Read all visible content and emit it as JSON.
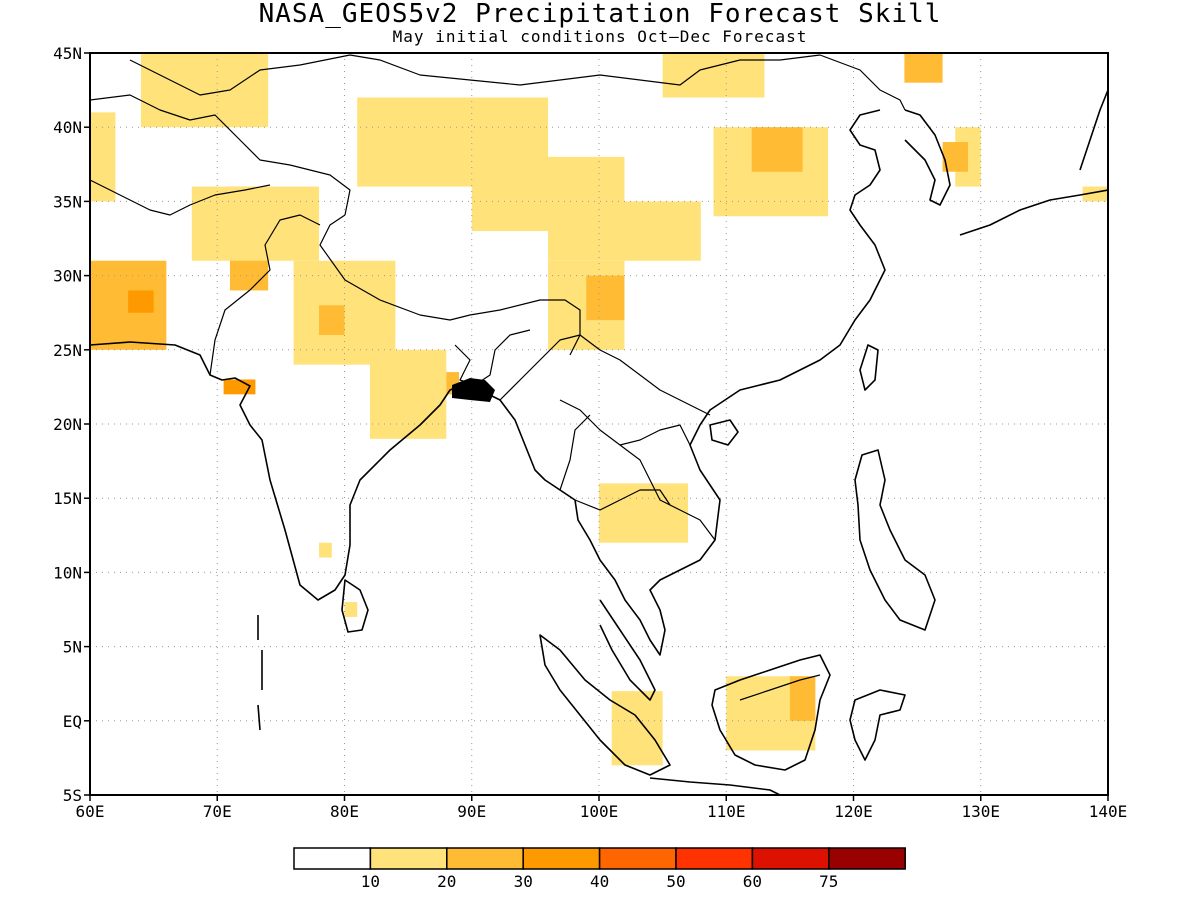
{
  "title": "NASA_GEOS5v2 Precipitation Forecast Skill",
  "subtitle": "May initial conditions  Oct–Dec Forecast",
  "map": {
    "lon_range": [
      60,
      140
    ],
    "lat_range": [
      -5,
      45
    ],
    "lon_ticks": [
      {
        "value": 60,
        "label": "60E"
      },
      {
        "value": 70,
        "label": "70E"
      },
      {
        "value": 80,
        "label": "80E"
      },
      {
        "value": 90,
        "label": "90E"
      },
      {
        "value": 100,
        "label": "100E"
      },
      {
        "value": 110,
        "label": "110E"
      },
      {
        "value": 120,
        "label": "120E"
      },
      {
        "value": 130,
        "label": "130E"
      },
      {
        "value": 140,
        "label": "140E"
      }
    ],
    "lat_ticks": [
      {
        "value": 45,
        "label": "45N"
      },
      {
        "value": 40,
        "label": "40N"
      },
      {
        "value": 35,
        "label": "35N"
      },
      {
        "value": 30,
        "label": "30N"
      },
      {
        "value": 25,
        "label": "25N"
      },
      {
        "value": 20,
        "label": "20N"
      },
      {
        "value": 15,
        "label": "15N"
      },
      {
        "value": 10,
        "label": "10N"
      },
      {
        "value": 5,
        "label": "5N"
      },
      {
        "value": 0,
        "label": "EQ"
      },
      {
        "value": -5,
        "label": "5S"
      }
    ],
    "grid": true
  },
  "legend": {
    "colors": [
      "#ffffff",
      "#ffe27a",
      "#ffbb33",
      "#ff9900",
      "#ff6600",
      "#ff3300",
      "#dd1100",
      "#990000"
    ],
    "labels": [
      "10",
      "20",
      "30",
      "40",
      "50",
      "60",
      "75"
    ]
  },
  "chart_data": {
    "type": "heatmap",
    "title": "NASA_GEOS5v2 Precipitation Forecast Skill",
    "subtitle": "May initial conditions  Oct–Dec Forecast",
    "xlim": [
      60,
      140
    ],
    "ylim": [
      -5,
      45
    ],
    "legend_thresholds": [
      10,
      20,
      30,
      40,
      50,
      60,
      75
    ],
    "regions": [
      {
        "lon": [
          60,
          62
        ],
        "lat": [
          35,
          41
        ],
        "level": 10
      },
      {
        "lon": [
          64,
          74
        ],
        "lat": [
          40,
          45
        ],
        "level": 10
      },
      {
        "lon": [
          60,
          66
        ],
        "lat": [
          25,
          31
        ],
        "level": 20
      },
      {
        "lon": [
          63,
          65
        ],
        "lat": [
          27.5,
          29
        ],
        "level": 30
      },
      {
        "lon": [
          71,
          74
        ],
        "lat": [
          29,
          36
        ],
        "level": 20
      },
      {
        "lon": [
          68,
          78
        ],
        "lat": [
          31,
          36
        ],
        "level": 10
      },
      {
        "lon": [
          76,
          84
        ],
        "lat": [
          24,
          31
        ],
        "level": 10
      },
      {
        "lon": [
          78,
          80
        ],
        "lat": [
          26,
          28
        ],
        "level": 20
      },
      {
        "lon": [
          70.5,
          73
        ],
        "lat": [
          22,
          23
        ],
        "level": 30
      },
      {
        "lon": [
          82,
          88
        ],
        "lat": [
          19,
          25
        ],
        "level": 10
      },
      {
        "lon": [
          88,
          89
        ],
        "lat": [
          22,
          23.5
        ],
        "level": 20
      },
      {
        "lon": [
          81,
          96
        ],
        "lat": [
          36,
          42
        ],
        "level": 10
      },
      {
        "lon": [
          90,
          102
        ],
        "lat": [
          33,
          38
        ],
        "level": 10
      },
      {
        "lon": [
          96,
          102
        ],
        "lat": [
          25,
          31
        ],
        "level": 10
      },
      {
        "lon": [
          99,
          102
        ],
        "lat": [
          27,
          30
        ],
        "level": 20
      },
      {
        "lon": [
          96,
          108
        ],
        "lat": [
          31,
          35
        ],
        "level": 10
      },
      {
        "lon": [
          109,
          118
        ],
        "lat": [
          34,
          40
        ],
        "level": 10
      },
      {
        "lon": [
          112,
          116
        ],
        "lat": [
          37,
          40
        ],
        "level": 20
      },
      {
        "lon": [
          105,
          113
        ],
        "lat": [
          42,
          45
        ],
        "level": 10
      },
      {
        "lon": [
          124,
          127
        ],
        "lat": [
          43,
          45
        ],
        "level": 20
      },
      {
        "lon": [
          128,
          130
        ],
        "lat": [
          36,
          40
        ],
        "level": 10
      },
      {
        "lon": [
          127,
          129
        ],
        "lat": [
          37,
          39
        ],
        "level": 20
      },
      {
        "lon": [
          100,
          107
        ],
        "lat": [
          12,
          16
        ],
        "level": 10
      },
      {
        "lon": [
          110,
          117
        ],
        "lat": [
          -2,
          3
        ],
        "level": 10
      },
      {
        "lon": [
          115,
          117
        ],
        "lat": [
          0,
          3
        ],
        "level": 20
      },
      {
        "lon": [
          101,
          105
        ],
        "lat": [
          -3,
          2
        ],
        "level": 10
      },
      {
        "lon": [
          78,
          79
        ],
        "lat": [
          11,
          12
        ],
        "level": 10
      },
      {
        "lon": [
          80,
          81
        ],
        "lat": [
          7,
          8
        ],
        "level": 10
      },
      {
        "lon": [
          138,
          140
        ],
        "lat": [
          35,
          36
        ],
        "level": 10
      }
    ]
  }
}
